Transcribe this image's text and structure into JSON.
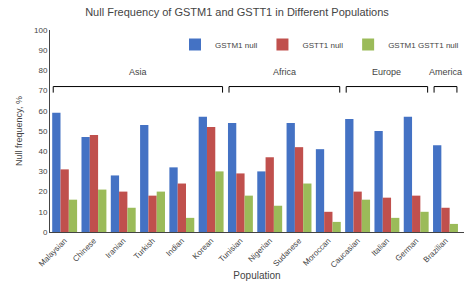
{
  "chart_data": {
    "type": "bar",
    "title": "Null Frequency of GSTM1 and GSTT1 in Different Populations",
    "xlabel": "Population",
    "ylabel": "Null frequency, %",
    "categories": [
      "Malaysian",
      "Chinese",
      "Iranian",
      "Turkish",
      "Indian",
      "Korean",
      "Tunisian",
      "Nigerian",
      "Sudanese",
      "Moroccan",
      "Caucasian",
      "Italian",
      "German",
      "Brazilian"
    ],
    "series": [
      {
        "name": "GSTM1 null",
        "color": "#4472C4",
        "values": [
          59,
          47,
          28,
          53,
          32,
          57,
          54,
          30,
          54,
          41,
          56,
          50,
          57,
          43
        ]
      },
      {
        "name": "GSTT1 null",
        "color": "#C0504D",
        "values": [
          31,
          48,
          20,
          18,
          24,
          52,
          29,
          37,
          42,
          10,
          20,
          17,
          18,
          12
        ]
      },
      {
        "name": "GSTM1 GSTT1 null",
        "color": "#9BBB59",
        "values": [
          16,
          21,
          12,
          20,
          7,
          30,
          18,
          13,
          24,
          5,
          16,
          7,
          10,
          4
        ]
      }
    ],
    "ylim": [
      0,
      100
    ],
    "yticks": [
      0,
      10,
      20,
      30,
      40,
      50,
      60,
      70,
      80,
      90,
      100
    ],
    "grid": false,
    "legend": "upper right",
    "annotations": [
      {
        "text": "Asia",
        "from": "Malaysian",
        "to": "Korean"
      },
      {
        "text": "Africa",
        "from": "Tunisian",
        "to": "Moroccan"
      },
      {
        "text": "Europe",
        "from": "Caucasian",
        "to": "German"
      },
      {
        "text": "America",
        "from": "Brazilian",
        "to": "Brazilian"
      }
    ]
  }
}
